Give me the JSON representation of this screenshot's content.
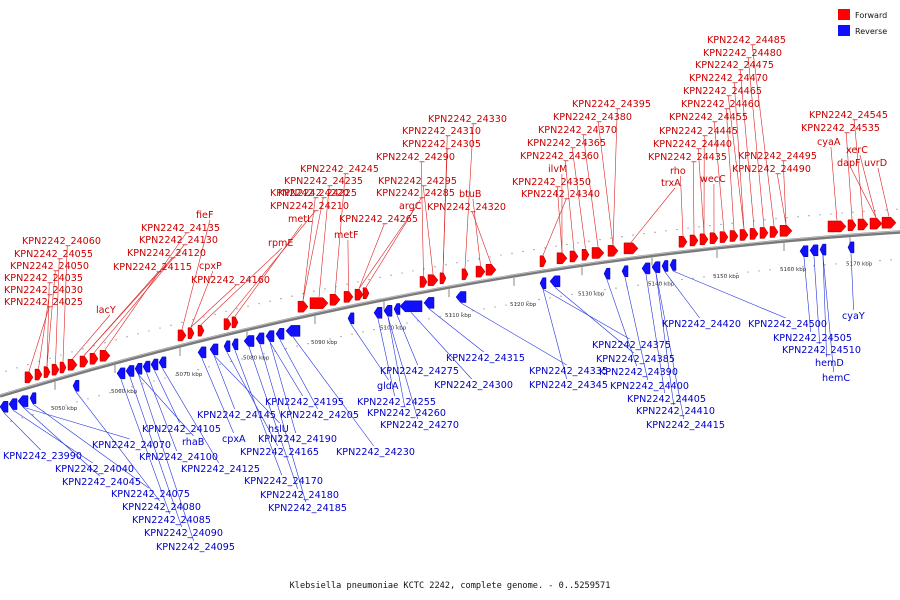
{
  "legend": {
    "forward_label": "Forward",
    "reverse_label": "Reverse",
    "forward_color": "#ff0000",
    "reverse_color": "#1010ff"
  },
  "caption": "Klebsiella pneumoniae KCTC 2242, complete genome. - 0..5259571",
  "colors": {
    "forward_label": "#cc0000",
    "reverse_label": "#0000cc",
    "axis": "#7a7a7a",
    "connector_forward": "#dd2222",
    "connector_reverse": "#2233dd"
  },
  "scale": {
    "unit": "kbp",
    "ticks": [
      "5050 kbp",
      "5060 kbp",
      "5070 kbp",
      "5080 kbp",
      "5090 kbp",
      "5100 kbp",
      "5110 kbp",
      "5120 kbp",
      "5130 kbp",
      "5140 kbp",
      "5150 kbp",
      "5160 kbp",
      "5170 kbp"
    ]
  },
  "forward_labels": [
    "KPN2242_24025",
    "KPN2242_24030",
    "KPN2242_24035",
    "KPN2242_24050",
    "KPN2242_24055",
    "KPN2242_24060",
    "lacY",
    "KPN2242_24115",
    "KPN2242_24120",
    "KPN2242_24130",
    "KPN2242_24135",
    "fieF",
    "cpxP",
    "KPN2242_24160",
    "rpmE",
    "KPN2242_24210",
    "metL",
    "KPN2242_24220",
    "KPN2242_24225",
    "KPN2242_24235",
    "KPN2242_24245",
    "metF",
    "KPN2242_24265",
    "argC",
    "KPN2242_24285",
    "KPN2242_24290",
    "KPN2242_24295",
    "KPN2242_24305",
    "KPN2242_24310",
    "KPN2242_24330",
    "btuB",
    "KPN2242_24320",
    "KPN2242_24340",
    "KPN2242_24350",
    "ilvM",
    "KPN2242_24360",
    "KPN2242_24365",
    "KPN2242_24370",
    "KPN2242_24380",
    "KPN2242_24395",
    "trxA",
    "rho",
    "KPN2242_24435",
    "KPN2242_24440",
    "KPN2242_24445",
    "wecC",
    "KPN2242_24455",
    "KPN2242_24460",
    "KPN2242_24465",
    "KPN2242_24470",
    "KPN2242_24475",
    "KPN2242_24480",
    "KPN2242_24485",
    "KPN2242_24490",
    "KPN2242_24495",
    "cyaA",
    "KPN2242_24535",
    "KPN2242_24545",
    "dapF",
    "xerC",
    "uvrD"
  ],
  "reverse_labels": [
    "KPN2242_23990",
    "KPN2242_24040",
    "KPN2242_24045",
    "KPN2242_24070",
    "KPN2242_24075",
    "KPN2242_24080",
    "KPN2242_24085",
    "KPN2242_24090",
    "KPN2242_24095",
    "rhaB",
    "KPN2242_24100",
    "KPN2242_24105",
    "KPN2242_24125",
    "cpxA",
    "KPN2242_24145",
    "hslU",
    "KPN2242_24165",
    "KPN2242_24170",
    "KPN2242_24180",
    "KPN2242_24185",
    "KPN2242_24190",
    "KPN2242_24195",
    "KPN2242_24205",
    "KPN2242_24230",
    "gldA",
    "KPN2242_24255",
    "KPN2242_24260",
    "KPN2242_24270",
    "KPN2242_24275",
    "KPN2242_24300",
    "KPN2242_24315",
    "KPN2242_24335",
    "KPN2242_24345",
    "KPN2242_24375",
    "KPN2242_24385",
    "KPN2242_24390",
    "KPN2242_24400",
    "KPN2242_24405",
    "KPN2242_24410",
    "KPN2242_24415",
    "KPN2242_24420",
    "KPN2242_24500",
    "KPN2242_24505",
    "KPN2242_24510",
    "hemD",
    "hemC",
    "cyaY"
  ]
}
